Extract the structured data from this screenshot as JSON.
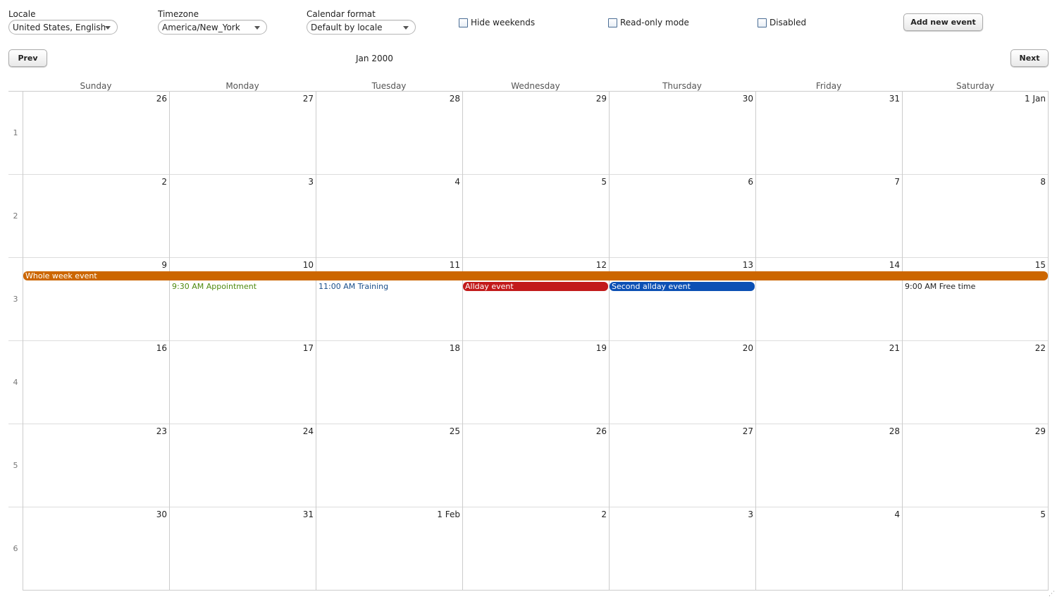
{
  "toolbar": {
    "locale": {
      "label": "Locale",
      "value": "United States, English"
    },
    "timezone": {
      "label": "Timezone",
      "value": "America/New_York"
    },
    "calendar_format": {
      "label": "Calendar format",
      "value": "Default by locale"
    },
    "hide_weekends": {
      "label": "Hide weekends",
      "checked": false
    },
    "read_only": {
      "label": "Read-only mode",
      "checked": false
    },
    "disabled": {
      "label": "Disabled",
      "checked": false
    },
    "add_event_label": "Add new event"
  },
  "nav": {
    "prev_label": "Prev",
    "next_label": "Next",
    "month_caption": "Jan 2000"
  },
  "calendar": {
    "weekdays": [
      "Sunday",
      "Monday",
      "Tuesday",
      "Wednesday",
      "Thursday",
      "Friday",
      "Saturday"
    ],
    "weeks": [
      {
        "number": "1",
        "days": [
          "26",
          "27",
          "28",
          "29",
          "30",
          "31",
          "1 Jan"
        ]
      },
      {
        "number": "2",
        "days": [
          "2",
          "3",
          "4",
          "5",
          "6",
          "7",
          "8"
        ]
      },
      {
        "number": "3",
        "days": [
          "9",
          "10",
          "11",
          "12",
          "13",
          "14",
          "15"
        ]
      },
      {
        "number": "4",
        "days": [
          "16",
          "17",
          "18",
          "19",
          "20",
          "21",
          "22"
        ]
      },
      {
        "number": "5",
        "days": [
          "23",
          "24",
          "25",
          "26",
          "27",
          "28",
          "29"
        ]
      },
      {
        "number": "6",
        "days": [
          "30",
          "31",
          "1 Feb",
          "2",
          "3",
          "4",
          "5"
        ]
      }
    ],
    "events": {
      "whole_week": {
        "label": "Whole week event",
        "color": "#cc6600"
      },
      "appointment": {
        "label": "9:30 AM Appointment",
        "color": "#4f8a10"
      },
      "training": {
        "label": "11:00 AM Training",
        "color": "#1a4f8b"
      },
      "allday": {
        "label": "Allday event",
        "color": "#c21b1b"
      },
      "second_allday": {
        "label": "Second allday event",
        "color": "#0c50b4"
      },
      "free_time": {
        "label": "9:00 AM Free time",
        "color": "#222222"
      }
    }
  }
}
